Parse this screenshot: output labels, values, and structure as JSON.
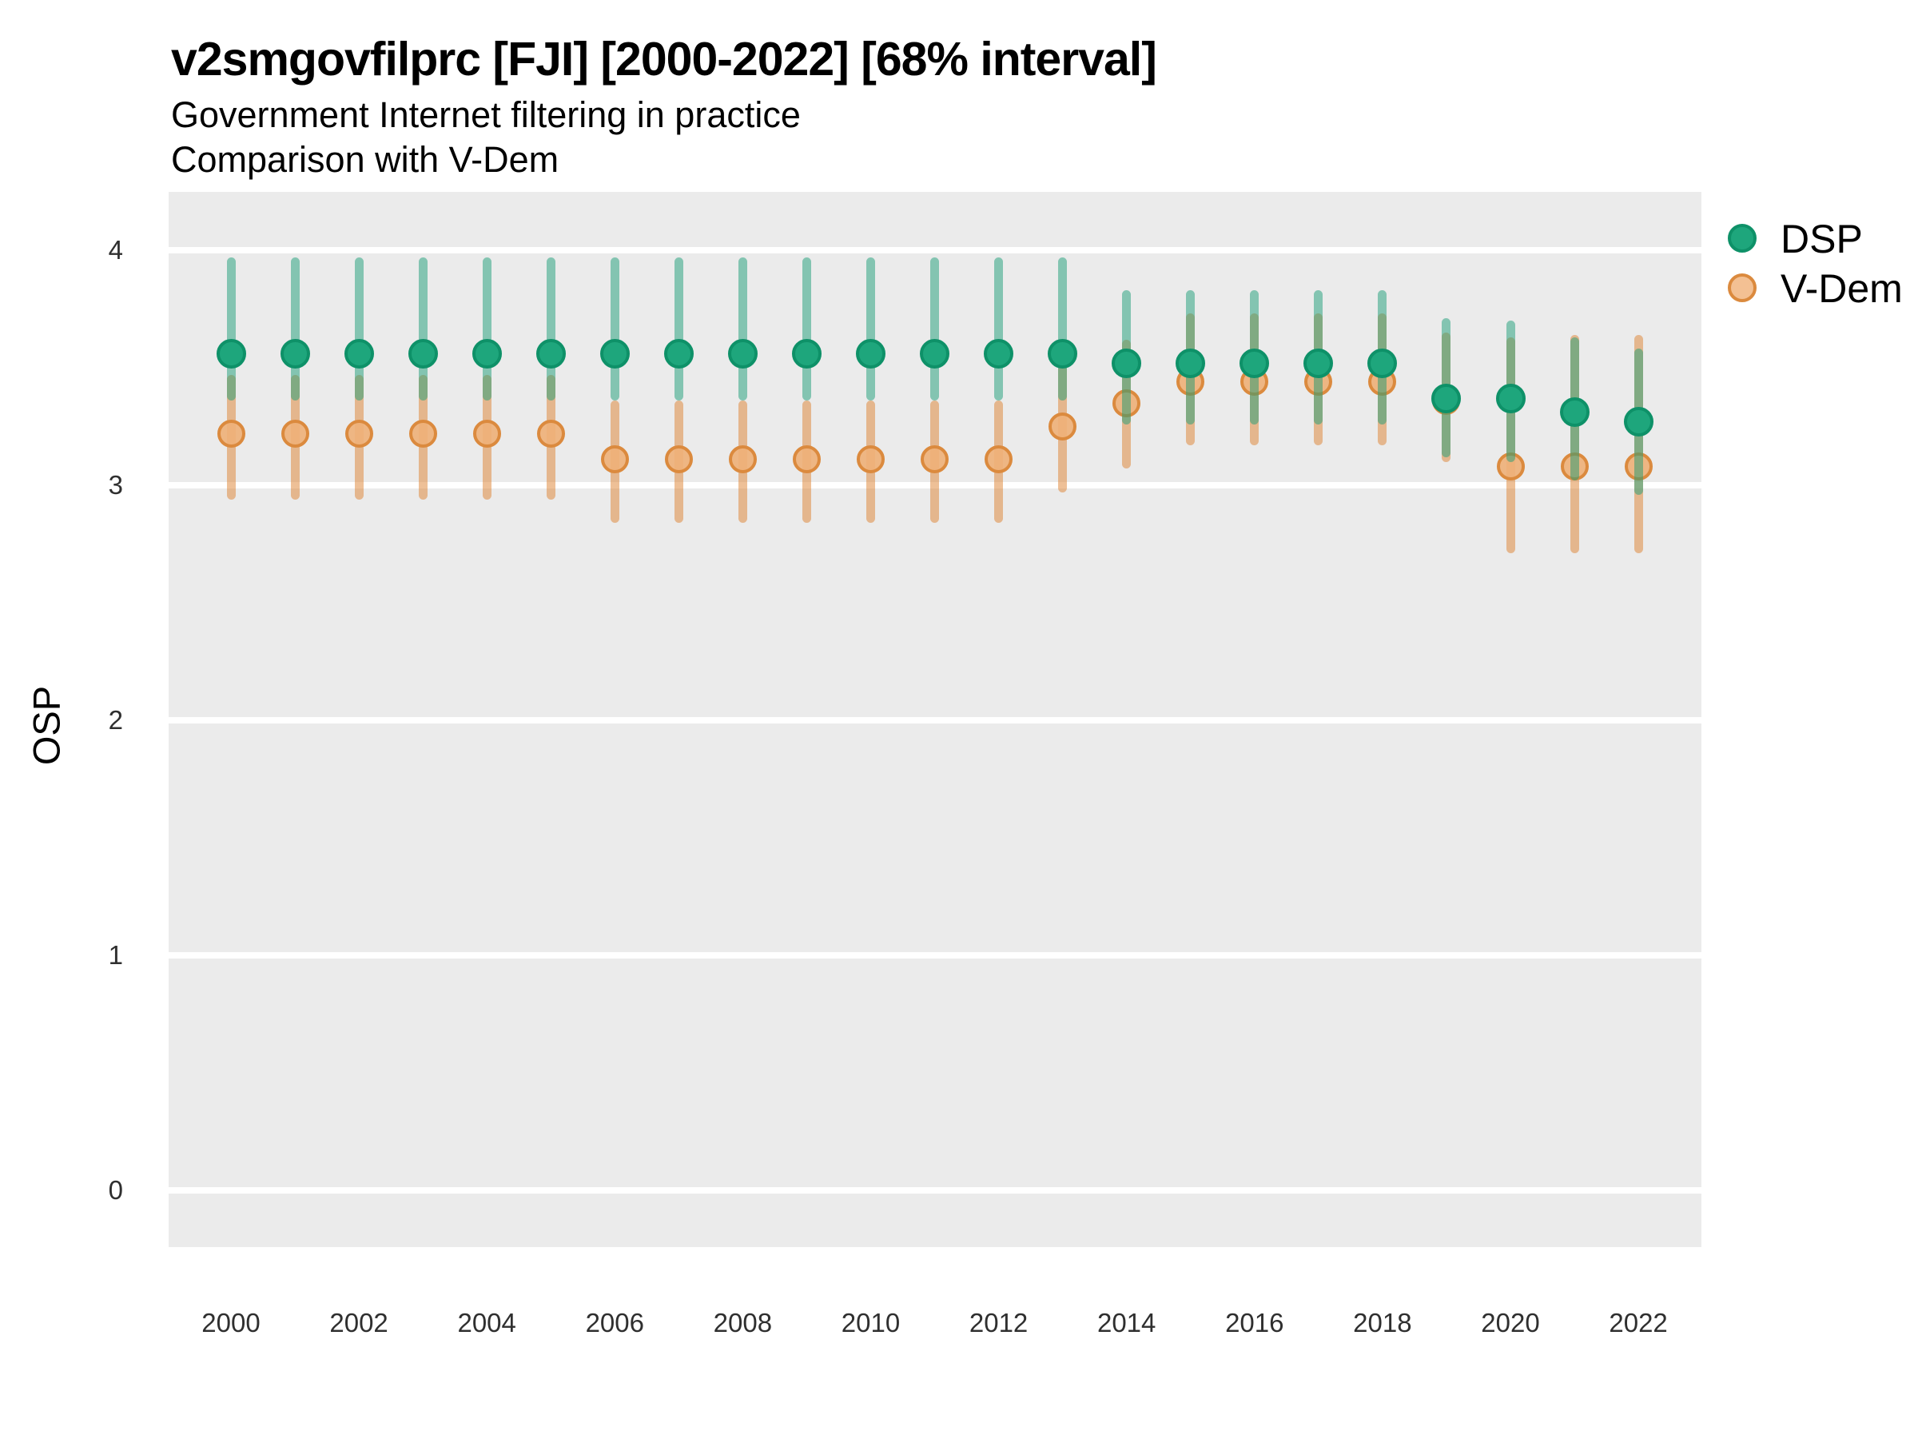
{
  "title": "v2smgovfilprc [FJI] [2000-2022] [68% interval]",
  "subtitle1": "Government Internet filtering in practice",
  "subtitle2": "Comparison with V-Dem",
  "y_axis": {
    "label": "OSP",
    "ticks": [
      4,
      3,
      2,
      1,
      0
    ]
  },
  "x_axis": {
    "tick_labels": [
      "2000",
      "2002",
      "2004",
      "2006",
      "2008",
      "2010",
      "2012",
      "2014",
      "2016",
      "2018",
      "2020",
      "2022"
    ]
  },
  "legend": {
    "items": [
      {
        "label": "DSP"
      },
      {
        "label": "V-Dem"
      }
    ]
  },
  "colors": {
    "panel_bg": "#EBEBEB",
    "gridline": "#FFFFFF",
    "dsp_bar": "rgba(27,158,119,0.5)",
    "dsp_marker_fill": "#1EA67C",
    "dsp_marker_border": "#0E9168",
    "vdem_bar": "rgba(222,129,48,0.5)",
    "vdem_marker_fill": "rgba(238,176,120,0.9)",
    "vdem_marker_border": "#DB8A3E",
    "vdem_legend_fill": "#F3C093",
    "text": "#000000",
    "tick_text": "#2F2F2F"
  },
  "chart_data": {
    "type": "pointrange",
    "title": "v2smgovfilprc [FJI] [2000-2022] [68% interval]",
    "subtitle": [
      "Government Internet filtering in practice",
      "Comparison with V-Dem"
    ],
    "xlabel": "",
    "ylabel": "OSP",
    "ylim": [
      -0.25,
      4.25
    ],
    "grid": "horizontal-major-only",
    "legend_position": "right",
    "interval": "68%",
    "x": [
      2000,
      2001,
      2002,
      2003,
      2004,
      2005,
      2006,
      2007,
      2008,
      2009,
      2010,
      2011,
      2012,
      2013,
      2014,
      2015,
      2016,
      2017,
      2018,
      2019,
      2020,
      2021,
      2022
    ],
    "series": [
      {
        "name": "DSP",
        "est": [
          3.56,
          3.56,
          3.56,
          3.56,
          3.56,
          3.56,
          3.56,
          3.56,
          3.56,
          3.56,
          3.56,
          3.56,
          3.56,
          3.56,
          3.52,
          3.52,
          3.52,
          3.52,
          3.52,
          3.37,
          3.37,
          3.31,
          3.27
        ],
        "lo": [
          3.36,
          3.36,
          3.36,
          3.36,
          3.36,
          3.36,
          3.36,
          3.36,
          3.36,
          3.36,
          3.36,
          3.36,
          3.36,
          3.36,
          3.26,
          3.26,
          3.26,
          3.26,
          3.26,
          3.12,
          3.1,
          3.02,
          2.96
        ],
        "hi": [
          3.97,
          3.97,
          3.97,
          3.97,
          3.97,
          3.97,
          3.97,
          3.97,
          3.97,
          3.97,
          3.97,
          3.97,
          3.97,
          3.97,
          3.83,
          3.83,
          3.83,
          3.83,
          3.83,
          3.71,
          3.7,
          3.63,
          3.58
        ]
      },
      {
        "name": "V-Dem",
        "est": [
          3.22,
          3.22,
          3.22,
          3.22,
          3.22,
          3.22,
          3.11,
          3.11,
          3.11,
          3.11,
          3.11,
          3.11,
          3.11,
          3.25,
          3.35,
          3.44,
          3.44,
          3.44,
          3.44,
          3.36,
          3.08,
          3.08,
          3.08
        ],
        "lo": [
          2.94,
          2.94,
          2.94,
          2.94,
          2.94,
          2.94,
          2.84,
          2.84,
          2.84,
          2.84,
          2.84,
          2.84,
          2.84,
          2.97,
          3.07,
          3.17,
          3.17,
          3.17,
          3.17,
          3.1,
          2.71,
          2.71,
          2.71
        ],
        "hi": [
          3.47,
          3.47,
          3.47,
          3.47,
          3.47,
          3.47,
          3.36,
          3.36,
          3.36,
          3.36,
          3.36,
          3.36,
          3.36,
          3.51,
          3.62,
          3.73,
          3.73,
          3.73,
          3.73,
          3.65,
          3.63,
          3.64,
          3.64
        ]
      }
    ]
  }
}
